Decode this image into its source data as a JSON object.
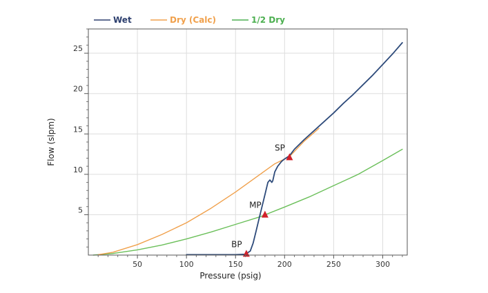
{
  "chart_data": {
    "type": "line",
    "xlabel": "Pressure (psig)",
    "ylabel": "Flow (slpm)",
    "xlim": [
      0,
      325
    ],
    "ylim": [
      0,
      28
    ],
    "x_ticks": [
      50,
      100,
      150,
      200,
      250,
      300
    ],
    "y_ticks": [
      5,
      10,
      15,
      20,
      25
    ],
    "grid": true,
    "legend_position": "top",
    "series": [
      {
        "name": "Wet",
        "color": "#2d4a7a",
        "legend_color": "#2d3f6e",
        "points": [
          [
            100,
            0.05
          ],
          [
            150,
            0.05
          ],
          [
            160,
            0.1
          ],
          [
            165,
            0.5
          ],
          [
            168,
            1.5
          ],
          [
            171,
            3
          ],
          [
            174,
            4.5
          ],
          [
            177,
            6
          ],
          [
            180,
            7.5
          ],
          [
            183,
            9
          ],
          [
            185,
            9.3
          ],
          [
            187,
            9.0
          ],
          [
            188,
            9.2
          ],
          [
            190,
            10.3
          ],
          [
            193,
            11.0
          ],
          [
            197,
            11.6
          ],
          [
            200,
            11.9
          ],
          [
            205,
            12.3
          ],
          [
            210,
            13.1
          ],
          [
            220,
            14.3
          ],
          [
            230,
            15.4
          ],
          [
            240,
            16.5
          ],
          [
            250,
            17.6
          ],
          [
            260,
            18.8
          ],
          [
            270,
            19.9
          ],
          [
            280,
            21.1
          ],
          [
            290,
            22.3
          ],
          [
            300,
            23.6
          ],
          [
            310,
            24.9
          ],
          [
            320,
            26.3
          ]
        ]
      },
      {
        "name": "Dry (Calc)",
        "color": "#f0a04b",
        "legend_color": "#f0a04b",
        "points": [
          [
            10,
            0.05
          ],
          [
            25,
            0.35
          ],
          [
            50,
            1.3
          ],
          [
            75,
            2.55
          ],
          [
            100,
            4.0
          ],
          [
            125,
            5.8
          ],
          [
            150,
            7.8
          ],
          [
            175,
            10.0
          ],
          [
            190,
            11.3
          ],
          [
            205,
            12.2
          ],
          [
            220,
            14.1
          ],
          [
            235,
            15.7
          ]
        ]
      },
      {
        "name": "1/2 Dry",
        "color": "#6abf59",
        "legend_color": "#4caf50",
        "points": [
          [
            5,
            0.0
          ],
          [
            25,
            0.2
          ],
          [
            50,
            0.65
          ],
          [
            75,
            1.25
          ],
          [
            100,
            2.0
          ],
          [
            125,
            2.85
          ],
          [
            150,
            3.8
          ],
          [
            175,
            4.75
          ],
          [
            200,
            5.95
          ],
          [
            225,
            7.2
          ],
          [
            250,
            8.6
          ],
          [
            275,
            10.0
          ],
          [
            300,
            11.7
          ],
          [
            320,
            13.1
          ]
        ]
      }
    ],
    "annotations": [
      {
        "label": "BP",
        "x": 161,
        "y": 0.05
      },
      {
        "label": "MP",
        "x": 180,
        "y": 4.9
      },
      {
        "label": "SP",
        "x": 205,
        "y": 12.0
      }
    ],
    "marker_color": "#d1202a"
  }
}
